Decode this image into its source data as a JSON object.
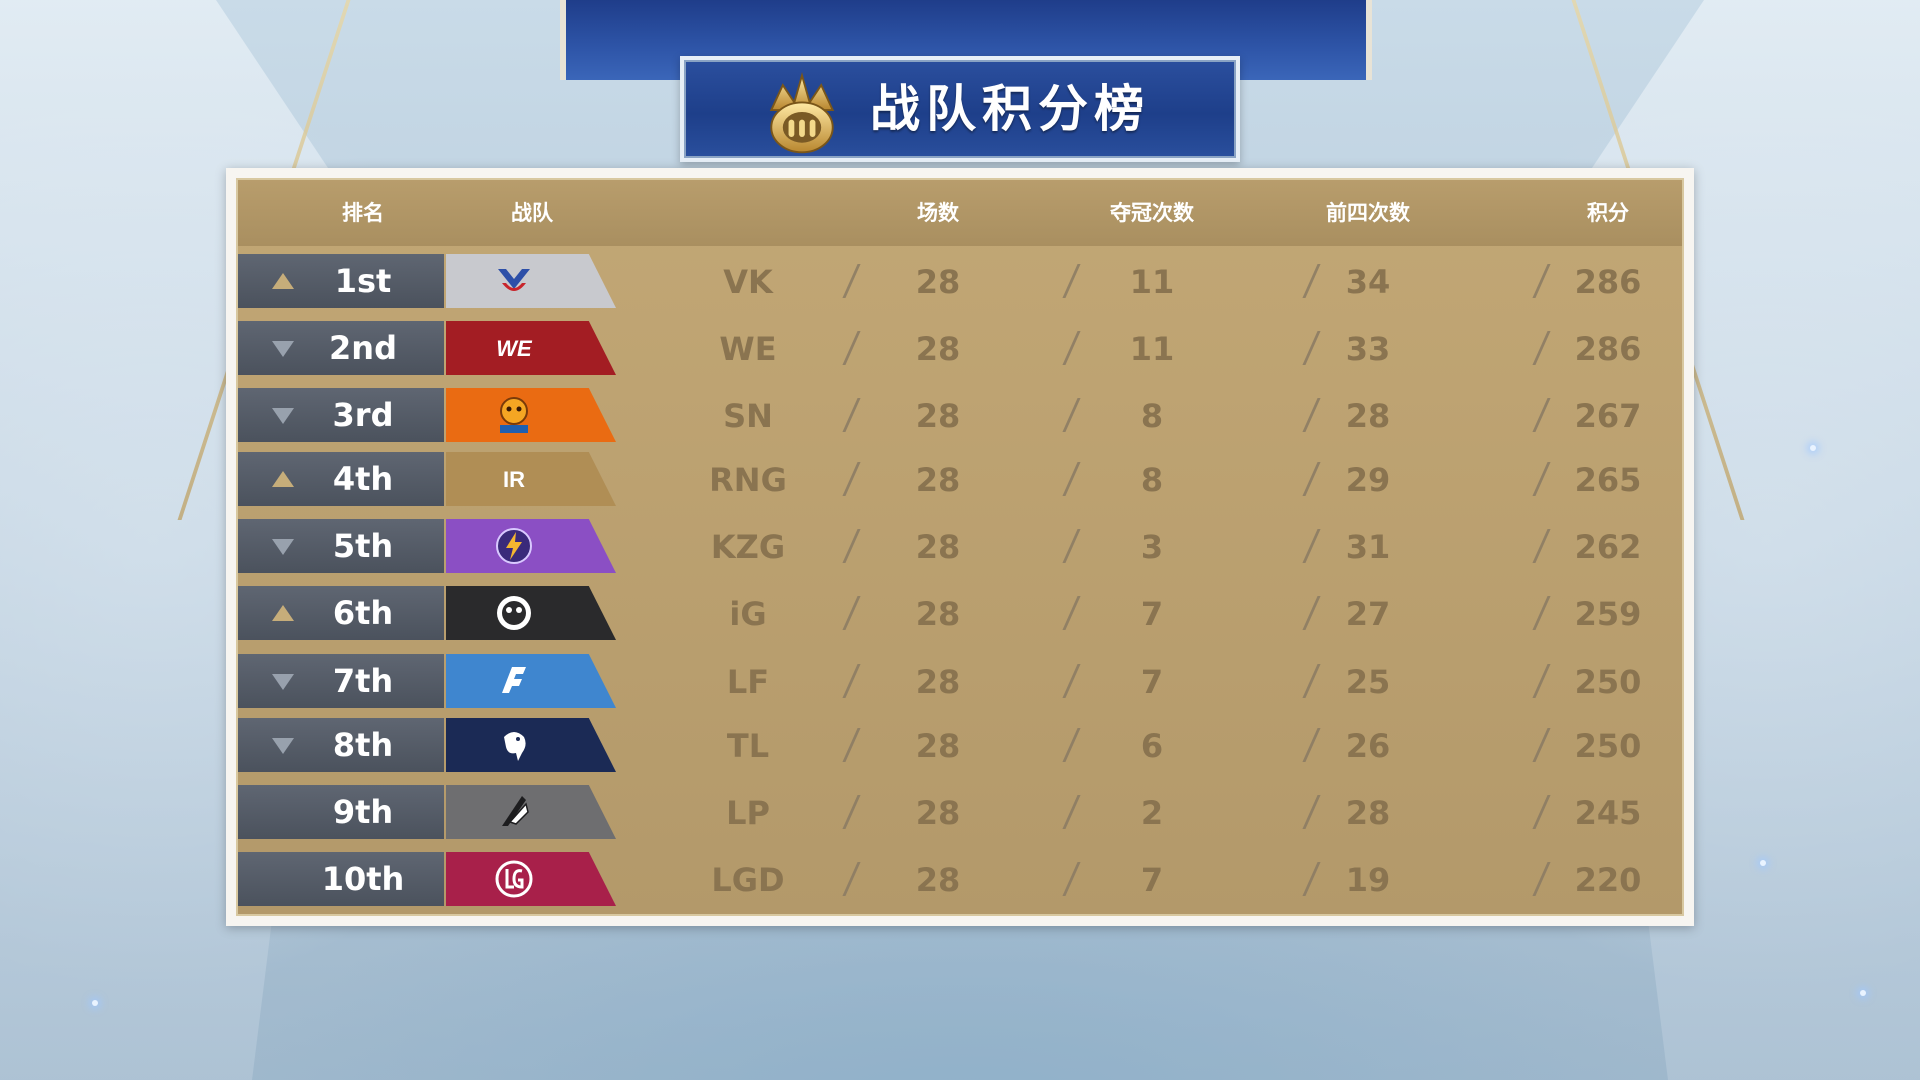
{
  "title": "战队积分榜",
  "colors": {
    "gold": "#b89d6c",
    "rank_bg": "#555c67",
    "value_text": "#8a7450",
    "banner_blue": "#1e3f8a"
  },
  "headers": {
    "rank": "排名",
    "team": "战队",
    "matches": "场数",
    "championships": "夺冠次数",
    "top4": "前四次数",
    "points": "积分"
  },
  "teams": [
    {
      "rank": "1st",
      "trend": "up",
      "name": "VK",
      "logo_color": "#c8c9ce",
      "logo_icon": "vk-logo-icon",
      "matches": "28",
      "championships": "11",
      "top4": "34",
      "points": "286"
    },
    {
      "rank": "2nd",
      "trend": "down",
      "name": "WE",
      "logo_color": "#a31d23",
      "logo_icon": "we-logo-icon",
      "matches": "28",
      "championships": "11",
      "top4": "33",
      "points": "286"
    },
    {
      "rank": "3rd",
      "trend": "down",
      "name": "SN",
      "logo_color": "#ea6b12",
      "logo_icon": "sn-logo-icon",
      "matches": "28",
      "championships": "8",
      "top4": "28",
      "points": "267"
    },
    {
      "rank": "4th",
      "trend": "up",
      "name": "RNG",
      "logo_color": "#b08e55",
      "logo_icon": "rng-logo-icon",
      "matches": "28",
      "championships": "8",
      "top4": "29",
      "points": "265"
    },
    {
      "rank": "5th",
      "trend": "down",
      "name": "KZG",
      "logo_color": "#8b4fc4",
      "logo_icon": "kzg-logo-icon",
      "matches": "28",
      "championships": "3",
      "top4": "31",
      "points": "262"
    },
    {
      "rank": "6th",
      "trend": "up",
      "name": "iG",
      "logo_color": "#2a2a2c",
      "logo_icon": "ig-logo-icon",
      "matches": "28",
      "championships": "7",
      "top4": "27",
      "points": "259"
    },
    {
      "rank": "7th",
      "trend": "down",
      "name": "LF",
      "logo_color": "#3f86cf",
      "logo_icon": "lf-logo-icon",
      "matches": "28",
      "championships": "7",
      "top4": "25",
      "points": "250"
    },
    {
      "rank": "8th",
      "trend": "down",
      "name": "TL",
      "logo_color": "#1b2a55",
      "logo_icon": "tl-logo-icon",
      "matches": "28",
      "championships": "6",
      "top4": "26",
      "points": "250"
    },
    {
      "rank": "9th",
      "trend": "none",
      "name": "LP",
      "logo_color": "#6e6e70",
      "logo_icon": "lp-logo-icon",
      "matches": "28",
      "championships": "2",
      "top4": "28",
      "points": "245"
    },
    {
      "rank": "10th",
      "trend": "none",
      "name": "LGD",
      "logo_color": "#a8204a",
      "logo_icon": "lgd-logo-icon",
      "matches": "28",
      "championships": "7",
      "top4": "19",
      "points": "220"
    }
  ]
}
